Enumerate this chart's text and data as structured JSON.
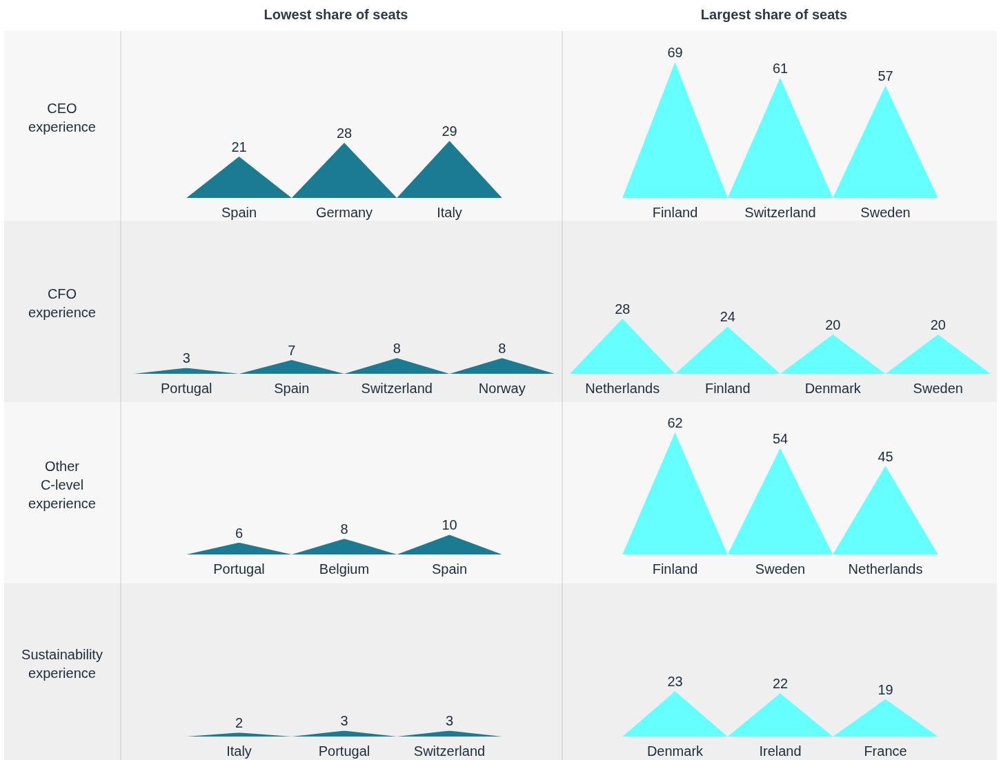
{
  "chart_data": [
    {
      "type": "bar",
      "title": "Lowest share of seats",
      "ylabel": "CEO experience",
      "categories": [
        "Spain",
        "Germany",
        "Italy"
      ],
      "values": [
        21,
        28,
        29
      ],
      "color": "#1b7b93",
      "data_labels": true,
      "tick_labels": "x"
    },
    {
      "type": "bar",
      "title": "Largest share of seats",
      "categories": [
        "Finland",
        "Switzerland",
        "Sweden"
      ],
      "values": [
        69,
        61,
        57
      ],
      "color": "#66ffff",
      "data_labels": true,
      "tick_labels": "x"
    },
    {
      "type": "bar",
      "ylabel": "CFO experience",
      "categories": [
        "Portugal",
        "Spain",
        "Switzerland",
        "Norway"
      ],
      "values": [
        3,
        7,
        8,
        8
      ],
      "color": "#1b7b93",
      "data_labels": true,
      "tick_labels": "x"
    },
    {
      "type": "bar",
      "categories": [
        "Netherlands",
        "Finland",
        "Denmark",
        "Sweden"
      ],
      "values": [
        28,
        24,
        20,
        20
      ],
      "color": "#66ffff",
      "data_labels": true,
      "tick_labels": "x"
    },
    {
      "type": "bar",
      "ylabel": "Other C-level experience",
      "categories": [
        "Portugal",
        "Belgium",
        "Spain"
      ],
      "values": [
        6,
        8,
        10
      ],
      "color": "#1b7b93",
      "data_labels": true,
      "tick_labels": "x"
    },
    {
      "type": "bar",
      "categories": [
        "Finland",
        "Sweden",
        "Netherlands"
      ],
      "values": [
        62,
        54,
        45
      ],
      "color": "#66ffff",
      "data_labels": true,
      "tick_labels": "x"
    },
    {
      "type": "bar",
      "ylabel": "Sustainability experience",
      "categories": [
        "Italy",
        "Portugal",
        "Switzerland"
      ],
      "values": [
        2,
        3,
        3
      ],
      "color": "#1b7b93",
      "data_labels": true,
      "tick_labels": "x"
    },
    {
      "type": "bar",
      "categories": [
        "Denmark",
        "Ireland",
        "France"
      ],
      "values": [
        23,
        22,
        19
      ],
      "color": "#66ffff",
      "data_labels": true,
      "tick_labels": "x"
    }
  ]
}
